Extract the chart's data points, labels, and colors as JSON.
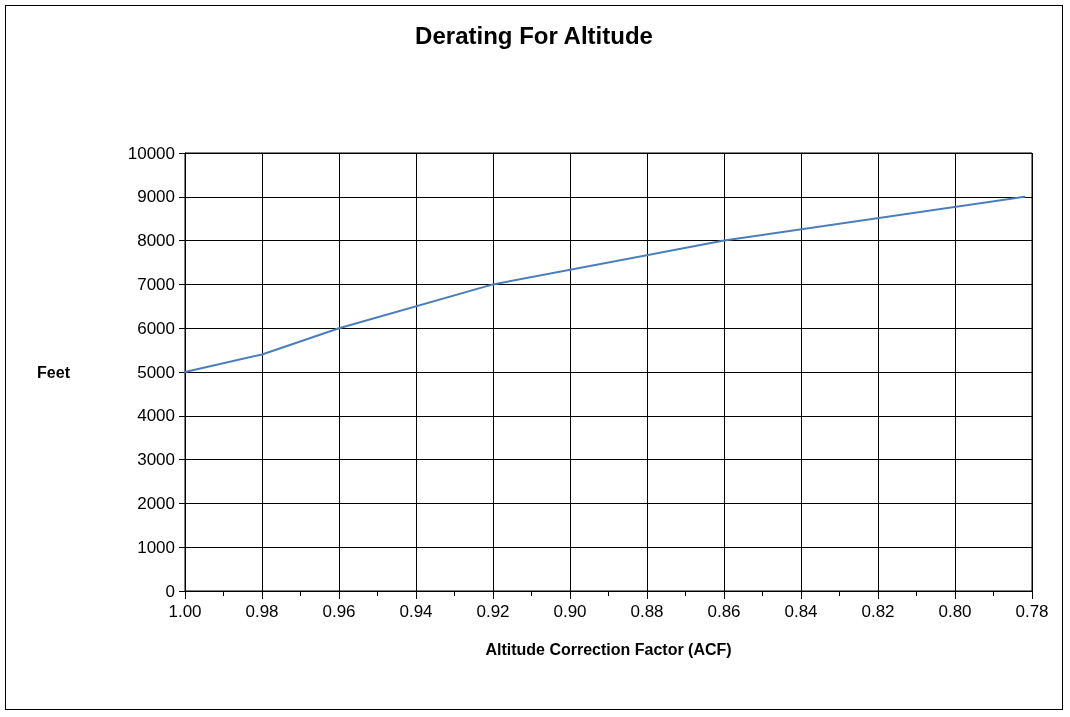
{
  "chart_data": {
    "type": "line",
    "title": "Derating For Altitude",
    "xlabel": "Altitude Correction Factor (ACF)",
    "ylabel": "Feet",
    "x": [
      1.0,
      0.98,
      0.96,
      0.92,
      0.86,
      0.782
    ],
    "series": [
      {
        "color": "#4a7ebb",
        "values": [
          5000,
          5400,
          6000,
          7000,
          8000,
          9000
        ]
      }
    ],
    "xlim": [
      1.0,
      0.78
    ],
    "xticks": [
      {
        "value": 1.0,
        "label": "1.00"
      },
      {
        "value": 0.99,
        "label": null
      },
      {
        "value": 0.98,
        "label": "0.98"
      },
      {
        "value": 0.97,
        "label": null
      },
      {
        "value": 0.96,
        "label": "0.96"
      },
      {
        "value": 0.95,
        "label": null
      },
      {
        "value": 0.94,
        "label": "0.94"
      },
      {
        "value": 0.93,
        "label": null
      },
      {
        "value": 0.92,
        "label": "0.92"
      },
      {
        "value": 0.91,
        "label": null
      },
      {
        "value": 0.9,
        "label": "0.90"
      },
      {
        "value": 0.89,
        "label": null
      },
      {
        "value": 0.88,
        "label": "0.88"
      },
      {
        "value": 0.87,
        "label": null
      },
      {
        "value": 0.86,
        "label": "0.86"
      },
      {
        "value": 0.85,
        "label": null
      },
      {
        "value": 0.84,
        "label": "0.84"
      },
      {
        "value": 0.83,
        "label": null
      },
      {
        "value": 0.82,
        "label": "0.82"
      },
      {
        "value": 0.81,
        "label": null
      },
      {
        "value": 0.8,
        "label": "0.80"
      },
      {
        "value": 0.79,
        "label": null
      },
      {
        "value": 0.78,
        "label": "0.78"
      }
    ],
    "ylim": [
      0,
      10000
    ],
    "yticks": [
      0,
      1000,
      2000,
      3000,
      4000,
      5000,
      6000,
      7000,
      8000,
      9000,
      10000
    ],
    "grid": true,
    "marker": "none",
    "line_style": "solid"
  }
}
